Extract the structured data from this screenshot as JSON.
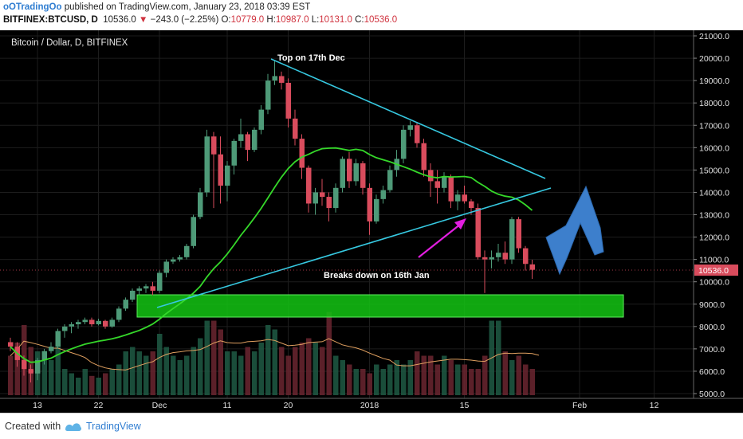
{
  "header": {
    "author": "oOTradingOo",
    "published_text": "published on TradingView.com, January 23, 2018 03:39 EST",
    "symbol": "BITFINEX:BTCUSD, D",
    "price": "10536.0",
    "change_arrow": "▼",
    "change": "−243.0 (−2.25%)",
    "open_label": "O:",
    "open": "10779.0",
    "high_label": "H:",
    "high": "10987.0",
    "low_label": "L:",
    "low": "10131.0",
    "close_label": "C:",
    "close": "10536.0"
  },
  "chart_title": "Bitcoin / Dollar, D, BITFINEX",
  "last_price_tag": "10536.0",
  "annotations": {
    "top": "Top on 17th Dec",
    "breakdown": "Breaks down on 16th Jan"
  },
  "footer": {
    "created_with": "Created with",
    "brand": "TradingView"
  },
  "colors": {
    "background": "#000000",
    "up": "#4e9a78",
    "down": "#d94c5d",
    "ma": "#35d82a",
    "trendline": "#36c8e0",
    "support_zone": "#13c413",
    "big_arrow": "#3d7fcc",
    "pink_arrow": "#e21ee0"
  },
  "chart_data": {
    "type": "candlestick",
    "title": "Bitcoin / Dollar, D, BITFINEX",
    "y_axis": {
      "min": 5000,
      "max": 21000,
      "ticks": [
        "21000.0",
        "20000.0",
        "19000.0",
        "18000.0",
        "17000.0",
        "16000.0",
        "15000.0",
        "14000.0",
        "13000.0",
        "12000.0",
        "11000.0",
        "10000.0",
        "9000.0",
        "8000.0",
        "7000.0",
        "6000.0",
        "5000.0"
      ]
    },
    "x_axis": {
      "start": "2017-11-09",
      "ticks": [
        {
          "day": 4,
          "label": "13"
        },
        {
          "day": 13,
          "label": "22"
        },
        {
          "day": 22,
          "label": "Dec"
        },
        {
          "day": 32,
          "label": "11"
        },
        {
          "day": 41,
          "label": "20"
        },
        {
          "day": 53,
          "label": "2018"
        },
        {
          "day": 67,
          "label": "15"
        },
        {
          "day": 84,
          "label": "Feb"
        },
        {
          "day": 95,
          "label": "12"
        }
      ]
    },
    "candles": [
      {
        "o": 7300,
        "h": 7500,
        "l": 6900,
        "c": 7100
      },
      {
        "o": 7100,
        "h": 7300,
        "l": 6200,
        "c": 6500
      },
      {
        "o": 6500,
        "h": 6700,
        "l": 5800,
        "c": 6100
      },
      {
        "o": 6100,
        "h": 6300,
        "l": 5500,
        "c": 5900
      },
      {
        "o": 5900,
        "h": 6600,
        "l": 5600,
        "c": 6500
      },
      {
        "o": 6500,
        "h": 7000,
        "l": 6300,
        "c": 6900
      },
      {
        "o": 6900,
        "h": 7300,
        "l": 6800,
        "c": 7100
      },
      {
        "o": 7100,
        "h": 7900,
        "l": 7000,
        "c": 7800
      },
      {
        "o": 7800,
        "h": 8100,
        "l": 7500,
        "c": 8000
      },
      {
        "o": 8000,
        "h": 8200,
        "l": 7700,
        "c": 8100
      },
      {
        "o": 8100,
        "h": 8300,
        "l": 7900,
        "c": 8200
      },
      {
        "o": 8200,
        "h": 8400,
        "l": 8100,
        "c": 8300
      },
      {
        "o": 8300,
        "h": 8400,
        "l": 8000,
        "c": 8100
      },
      {
        "o": 8100,
        "h": 8350,
        "l": 8050,
        "c": 8250
      },
      {
        "o": 8250,
        "h": 8300,
        "l": 7900,
        "c": 8000
      },
      {
        "o": 8000,
        "h": 8400,
        "l": 7950,
        "c": 8300
      },
      {
        "o": 8300,
        "h": 8900,
        "l": 8200,
        "c": 8800
      },
      {
        "o": 8800,
        "h": 9300,
        "l": 8700,
        "c": 9200
      },
      {
        "o": 9200,
        "h": 9700,
        "l": 9100,
        "c": 9600
      },
      {
        "o": 9600,
        "h": 9800,
        "l": 9400,
        "c": 9700
      },
      {
        "o": 9700,
        "h": 9900,
        "l": 9500,
        "c": 9800
      },
      {
        "o": 9800,
        "h": 10000,
        "l": 9400,
        "c": 9600
      },
      {
        "o": 9600,
        "h": 10500,
        "l": 9500,
        "c": 10400
      },
      {
        "o": 10400,
        "h": 11000,
        "l": 10200,
        "c": 10900
      },
      {
        "o": 10900,
        "h": 11100,
        "l": 10800,
        "c": 11000
      },
      {
        "o": 11000,
        "h": 11200,
        "l": 10900,
        "c": 11100
      },
      {
        "o": 11100,
        "h": 11700,
        "l": 11000,
        "c": 11600
      },
      {
        "o": 11600,
        "h": 13000,
        "l": 11500,
        "c": 12900
      },
      {
        "o": 12900,
        "h": 14200,
        "l": 12800,
        "c": 14000
      },
      {
        "o": 14000,
        "h": 16800,
        "l": 13800,
        "c": 16500
      },
      {
        "o": 16500,
        "h": 16700,
        "l": 13300,
        "c": 15700
      },
      {
        "o": 15700,
        "h": 16500,
        "l": 13500,
        "c": 14300
      },
      {
        "o": 14300,
        "h": 15400,
        "l": 13600,
        "c": 15200
      },
      {
        "o": 15200,
        "h": 16400,
        "l": 14800,
        "c": 16300
      },
      {
        "o": 16300,
        "h": 17300,
        "l": 16000,
        "c": 16600
      },
      {
        "o": 16600,
        "h": 16700,
        "l": 15400,
        "c": 15900
      },
      {
        "o": 15900,
        "h": 16900,
        "l": 15800,
        "c": 16800
      },
      {
        "o": 16800,
        "h": 17900,
        "l": 16600,
        "c": 17700
      },
      {
        "o": 17700,
        "h": 19300,
        "l": 17500,
        "c": 19000
      },
      {
        "o": 19000,
        "h": 19900,
        "l": 18800,
        "c": 19200
      },
      {
        "o": 19200,
        "h": 19400,
        "l": 18600,
        "c": 18900
      },
      {
        "o": 18900,
        "h": 19100,
        "l": 16900,
        "c": 17300
      },
      {
        "o": 17300,
        "h": 17700,
        "l": 16100,
        "c": 16400
      },
      {
        "o": 16400,
        "h": 16600,
        "l": 14600,
        "c": 15100
      },
      {
        "o": 15100,
        "h": 15200,
        "l": 13100,
        "c": 13500
      },
      {
        "o": 13500,
        "h": 14200,
        "l": 13000,
        "c": 14000
      },
      {
        "o": 14000,
        "h": 14600,
        "l": 13400,
        "c": 13800
      },
      {
        "o": 13800,
        "h": 14000,
        "l": 12700,
        "c": 13300
      },
      {
        "o": 13300,
        "h": 14400,
        "l": 13100,
        "c": 14200
      },
      {
        "o": 14200,
        "h": 15600,
        "l": 14000,
        "c": 15500
      },
      {
        "o": 15500,
        "h": 15800,
        "l": 14200,
        "c": 14500
      },
      {
        "o": 14500,
        "h": 15500,
        "l": 14300,
        "c": 15300
      },
      {
        "o": 15300,
        "h": 15400,
        "l": 13900,
        "c": 14200
      },
      {
        "o": 14200,
        "h": 14400,
        "l": 12100,
        "c": 12700
      },
      {
        "o": 12700,
        "h": 13900,
        "l": 12600,
        "c": 13700
      },
      {
        "o": 13700,
        "h": 14300,
        "l": 13500,
        "c": 14100
      },
      {
        "o": 14100,
        "h": 15200,
        "l": 14000,
        "c": 15000
      },
      {
        "o": 15000,
        "h": 15900,
        "l": 14700,
        "c": 15500
      },
      {
        "o": 15500,
        "h": 17000,
        "l": 15300,
        "c": 16800
      },
      {
        "o": 16800,
        "h": 17200,
        "l": 16500,
        "c": 17000
      },
      {
        "o": 17000,
        "h": 17100,
        "l": 16000,
        "c": 16200
      },
      {
        "o": 16200,
        "h": 16400,
        "l": 14700,
        "c": 15000
      },
      {
        "o": 15000,
        "h": 15300,
        "l": 13800,
        "c": 14500
      },
      {
        "o": 14500,
        "h": 15000,
        "l": 13500,
        "c": 14200
      },
      {
        "o": 14200,
        "h": 14900,
        "l": 14000,
        "c": 14700
      },
      {
        "o": 14700,
        "h": 14800,
        "l": 13300,
        "c": 13600
      },
      {
        "o": 13600,
        "h": 14100,
        "l": 13200,
        "c": 13900
      },
      {
        "o": 13900,
        "h": 14300,
        "l": 13500,
        "c": 13600
      },
      {
        "o": 13600,
        "h": 13700,
        "l": 13000,
        "c": 13300
      },
      {
        "o": 13300,
        "h": 13500,
        "l": 11000,
        "c": 11100
      },
      {
        "o": 11100,
        "h": 11400,
        "l": 9500,
        "c": 11000
      },
      {
        "o": 11000,
        "h": 11400,
        "l": 10600,
        "c": 11100
      },
      {
        "o": 11100,
        "h": 11700,
        "l": 10900,
        "c": 11300
      },
      {
        "o": 11300,
        "h": 11800,
        "l": 10800,
        "c": 11000
      },
      {
        "o": 11000,
        "h": 12900,
        "l": 10800,
        "c": 12800
      },
      {
        "o": 12800,
        "h": 12900,
        "l": 11300,
        "c": 11500
      },
      {
        "o": 11500,
        "h": 11600,
        "l": 10500,
        "c": 10800
      },
      {
        "o": 10779,
        "h": 10987,
        "l": 10131,
        "c": 10536
      }
    ],
    "volumes": [
      0.45,
      0.6,
      0.8,
      0.55,
      0.5,
      0.45,
      0.4,
      0.55,
      0.3,
      0.25,
      0.2,
      0.3,
      0.22,
      0.2,
      0.25,
      0.3,
      0.35,
      0.5,
      0.55,
      0.5,
      0.45,
      0.5,
      0.7,
      0.55,
      0.45,
      0.4,
      0.45,
      0.55,
      0.65,
      0.85,
      0.85,
      0.75,
      0.5,
      0.5,
      0.45,
      0.55,
      0.5,
      0.6,
      0.8,
      0.75,
      0.55,
      0.45,
      0.55,
      0.6,
      0.65,
      0.6,
      0.55,
      0.95,
      0.45,
      0.4,
      0.35,
      0.3,
      0.3,
      0.25,
      0.35,
      0.3,
      0.35,
      0.4,
      0.35,
      0.4,
      0.5,
      0.45,
      0.45,
      0.35,
      0.45,
      0.4,
      0.35,
      0.35,
      0.3,
      0.3,
      0.45,
      0.85,
      0.85,
      0.5,
      0.4,
      0.45,
      0.35,
      0.3,
      0.1
    ]
  }
}
